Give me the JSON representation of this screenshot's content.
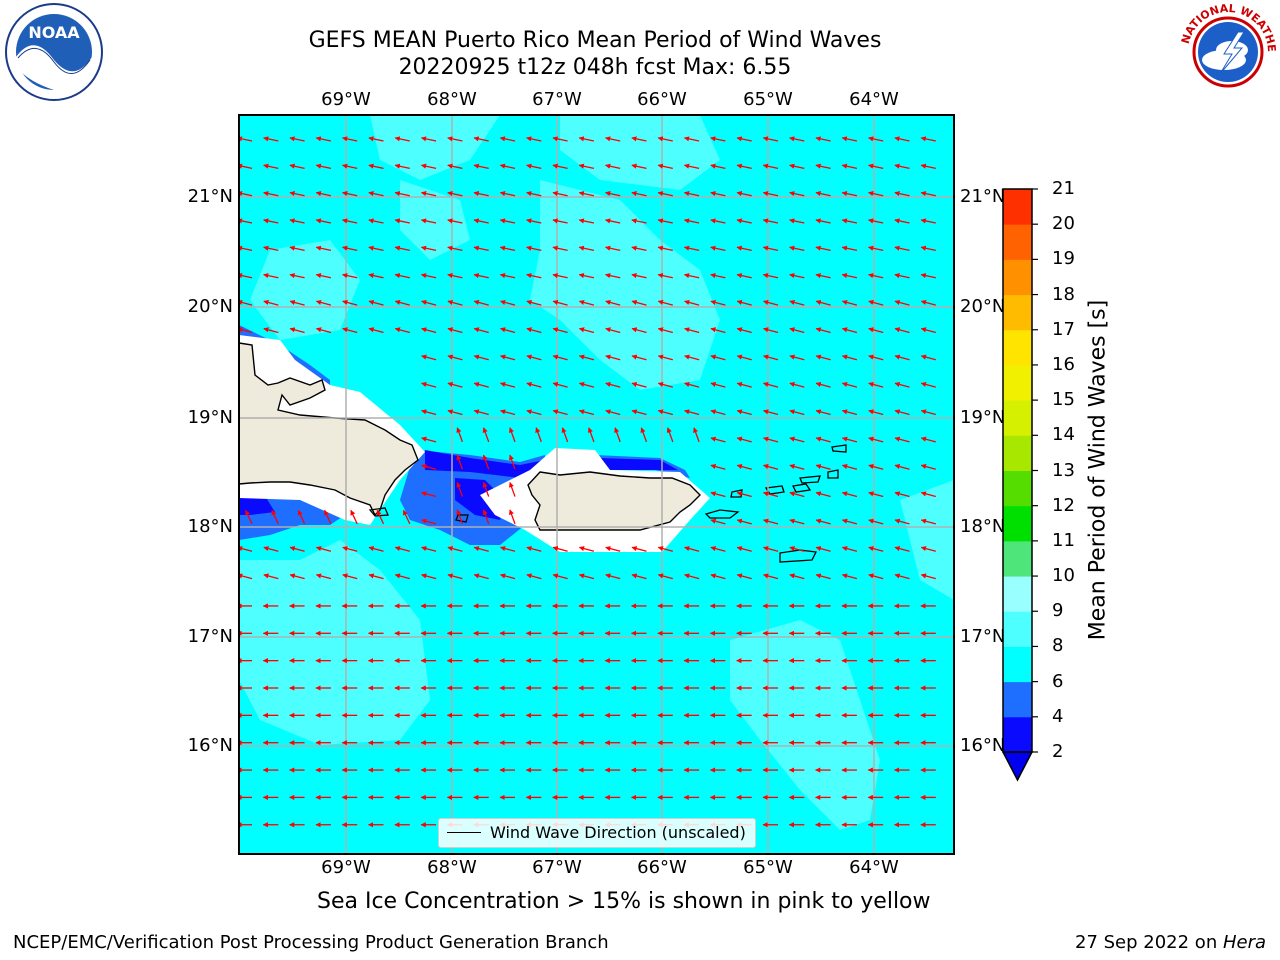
{
  "header": {
    "title_line1": "GEFS MEAN Puerto Rico Mean Period of Wind Waves",
    "title_line2": "20220925 t12z 048h fcst   Max: 6.55"
  },
  "logos": {
    "left": "noaa-logo",
    "left_text": "NOAA",
    "right": "national-weather-service-logo"
  },
  "map": {
    "lon_labels": [
      "69°W",
      "68°W",
      "67°W",
      "66°W",
      "65°W",
      "64°W"
    ],
    "lat_labels": [
      "21°N",
      "20°N",
      "19°N",
      "18°N",
      "17°N",
      "16°N"
    ],
    "arrow_color": "#ff0000",
    "land_color": "#efebdc",
    "grid_color": "#b0b0b0"
  },
  "colorbar": {
    "label": "Mean Period of Wind Waves [s]",
    "ticks": [
      "2",
      "4",
      "6",
      "8",
      "9",
      "10",
      "11",
      "12",
      "13",
      "14",
      "15",
      "16",
      "17",
      "18",
      "19",
      "20",
      "21"
    ],
    "colors": [
      "#0a0aff",
      "#1e6eff",
      "#00ffff",
      "#4dffff",
      "#99ffff",
      "#4ee67a",
      "#00e000",
      "#55dd00",
      "#a8e800",
      "#d5f000",
      "#f0f000",
      "#ffe400",
      "#ffbb00",
      "#ff9000",
      "#ff6200",
      "#ff3000",
      "#ff0000"
    ],
    "under_color": "#0000ee"
  },
  "legend": {
    "label": "Wind Wave Direction (unscaled)"
  },
  "sea_ice_note": "Sea Ice Concentration > 15% is shown in pink to yellow",
  "footer": {
    "left": "NCEP/EMC/Verification Post Processing Product Generation Branch",
    "date": "27 Sep 2022 on ",
    "host": "Hera"
  }
}
